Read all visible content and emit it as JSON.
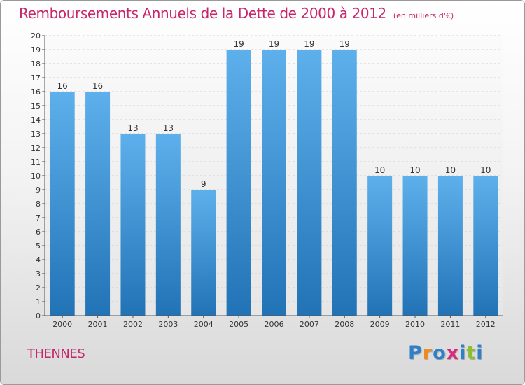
{
  "title": "Remboursements Annuels de la Dette de 2000 à 2012",
  "subtitle": "(en milliers d'€)",
  "commune": "THENNES",
  "logo": {
    "text": "Proxiti",
    "letter_colors": [
      "#2f7fc9",
      "#f08a1c",
      "#2f7fc9",
      "#d92a7e",
      "#2f7fc9",
      "#8bbf2f",
      "#2f7fc9"
    ]
  },
  "colors": {
    "bar_top": "#5eb0ec",
    "bar_bottom": "#2273b6",
    "title": "#c8266b",
    "grid": "#cfcfcf",
    "axis": "#555555"
  },
  "chart_data": {
    "type": "bar",
    "categories": [
      "2000",
      "2001",
      "2002",
      "2003",
      "2004",
      "2005",
      "2006",
      "2007",
      "2008",
      "2009",
      "2010",
      "2011",
      "2012"
    ],
    "values": [
      16,
      16,
      13,
      13,
      9,
      19,
      19,
      19,
      19,
      10,
      10,
      10,
      10
    ],
    "title": "Remboursements Annuels de la Dette de 2000 à 2012",
    "subtitle": "(en milliers d'€)",
    "xlabel": "",
    "ylabel": "",
    "ylim": [
      0,
      20
    ],
    "yticks": [
      0,
      1,
      2,
      3,
      4,
      5,
      6,
      7,
      8,
      9,
      10,
      11,
      12,
      13,
      14,
      15,
      16,
      17,
      18,
      19,
      20
    ],
    "grid": "horizontal dashed",
    "legend": "none"
  }
}
